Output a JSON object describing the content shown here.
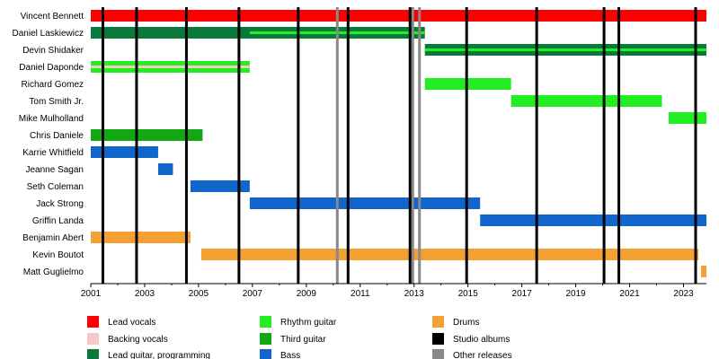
{
  "chart_data": {
    "type": "timeline",
    "x_range": [
      2001,
      2023.85
    ],
    "x_ticks": [
      "2001",
      "2003",
      "2005",
      "2007",
      "2009",
      "2011",
      "2013",
      "2015",
      "2017",
      "2019",
      "2021",
      "2023"
    ],
    "roles": {
      "lead_vocals": {
        "label": "Lead vocals",
        "color": "#ff0000"
      },
      "backing_vocals": {
        "label": "Backing vocals",
        "color": "#f7c8c8"
      },
      "lead_guitar": {
        "label": "Lead guitar, programming",
        "color": "#0a7a3c"
      },
      "rhythm_guitar": {
        "label": "Rhythm guitar",
        "color": "#22ee22"
      },
      "third_guitar": {
        "label": "Third guitar",
        "color": "#12a812"
      },
      "bass": {
        "label": "Bass",
        "color": "#1166cc"
      },
      "drums": {
        "label": "Drums",
        "color": "#f5a033"
      },
      "studio_albums": {
        "label": "Studio albums",
        "color": "#000000"
      },
      "other_releases": {
        "label": "Other releases",
        "color": "#888888"
      }
    },
    "members": [
      {
        "name": "Vincent Bennett",
        "periods": [
          {
            "role": "lead_vocals",
            "start": 2001,
            "end": 2023.85
          }
        ]
      },
      {
        "name": "Daniel Laskiewicz",
        "periods": [
          {
            "role": "lead_guitar",
            "start": 2001,
            "end": 2013.4
          },
          {
            "role": "rhythm_guitar",
            "start": 2006.9,
            "end": 2013.4,
            "stripe": true
          }
        ]
      },
      {
        "name": "Devin Shidaker",
        "periods": [
          {
            "role": "lead_guitar",
            "start": 2013.4,
            "end": 2023.85
          },
          {
            "role": "rhythm_guitar",
            "start": 2013.4,
            "end": 2023.85,
            "stripe": true
          }
        ]
      },
      {
        "name": "Daniel Daponde",
        "periods": [
          {
            "role": "rhythm_guitar",
            "start": 2001,
            "end": 2006.9
          },
          {
            "role": "backing_vocals",
            "start": 2001,
            "end": 2006.9,
            "stripe": true
          }
        ]
      },
      {
        "name": "Richard Gomez",
        "periods": [
          {
            "role": "rhythm_guitar",
            "start": 2013.4,
            "end": 2016.6
          }
        ]
      },
      {
        "name": "Tom Smith Jr.",
        "periods": [
          {
            "role": "rhythm_guitar",
            "start": 2016.6,
            "end": 2022.2
          }
        ]
      },
      {
        "name": "Mike Mulholland",
        "periods": [
          {
            "role": "rhythm_guitar",
            "start": 2022.45,
            "end": 2023.85
          }
        ]
      },
      {
        "name": "Chris Daniele",
        "periods": [
          {
            "role": "third_guitar",
            "start": 2001,
            "end": 2005.15
          }
        ]
      },
      {
        "name": "Karrie Whitfield",
        "periods": [
          {
            "role": "bass",
            "start": 2001,
            "end": 2003.5
          }
        ]
      },
      {
        "name": "Jeanne Sagan",
        "periods": [
          {
            "role": "bass",
            "start": 2003.5,
            "end": 2004.05
          }
        ]
      },
      {
        "name": "Seth Coleman",
        "periods": [
          {
            "role": "bass",
            "start": 2004.7,
            "end": 2006.9
          }
        ]
      },
      {
        "name": "Jack Strong",
        "periods": [
          {
            "role": "bass",
            "start": 2006.9,
            "end": 2015.45
          }
        ]
      },
      {
        "name": "Griffin Landa",
        "periods": [
          {
            "role": "bass",
            "start": 2015.45,
            "end": 2023.85
          }
        ]
      },
      {
        "name": "Benjamin Abert",
        "periods": [
          {
            "role": "drums",
            "start": 2001,
            "end": 2004.7
          }
        ]
      },
      {
        "name": "Kevin Boutot",
        "periods": [
          {
            "role": "drums",
            "start": 2005.1,
            "end": 2023.55
          }
        ]
      },
      {
        "name": "Matt Guglielmo",
        "periods": [
          {
            "role": "drums",
            "start": 2023.65,
            "end": 2023.85
          }
        ]
      }
    ],
    "studio_album_years": [
      2001.45,
      2002.7,
      2004.55,
      2006.5,
      2008.7,
      2010.55,
      2012.85,
      2014.95,
      2017.55,
      2020.05,
      2020.6,
      2023.45
    ],
    "other_release_years": [
      2001.45,
      2010.15,
      2012.95,
      2013.2
    ],
    "legend": [
      {
        "role": "lead_vocals"
      },
      {
        "role": "backing_vocals"
      },
      {
        "role": "lead_guitar"
      },
      {
        "role": "rhythm_guitar"
      },
      {
        "role": "third_guitar"
      },
      {
        "role": "bass"
      },
      {
        "role": "drums"
      },
      {
        "role": "studio_albums"
      },
      {
        "role": "other_releases"
      }
    ]
  }
}
